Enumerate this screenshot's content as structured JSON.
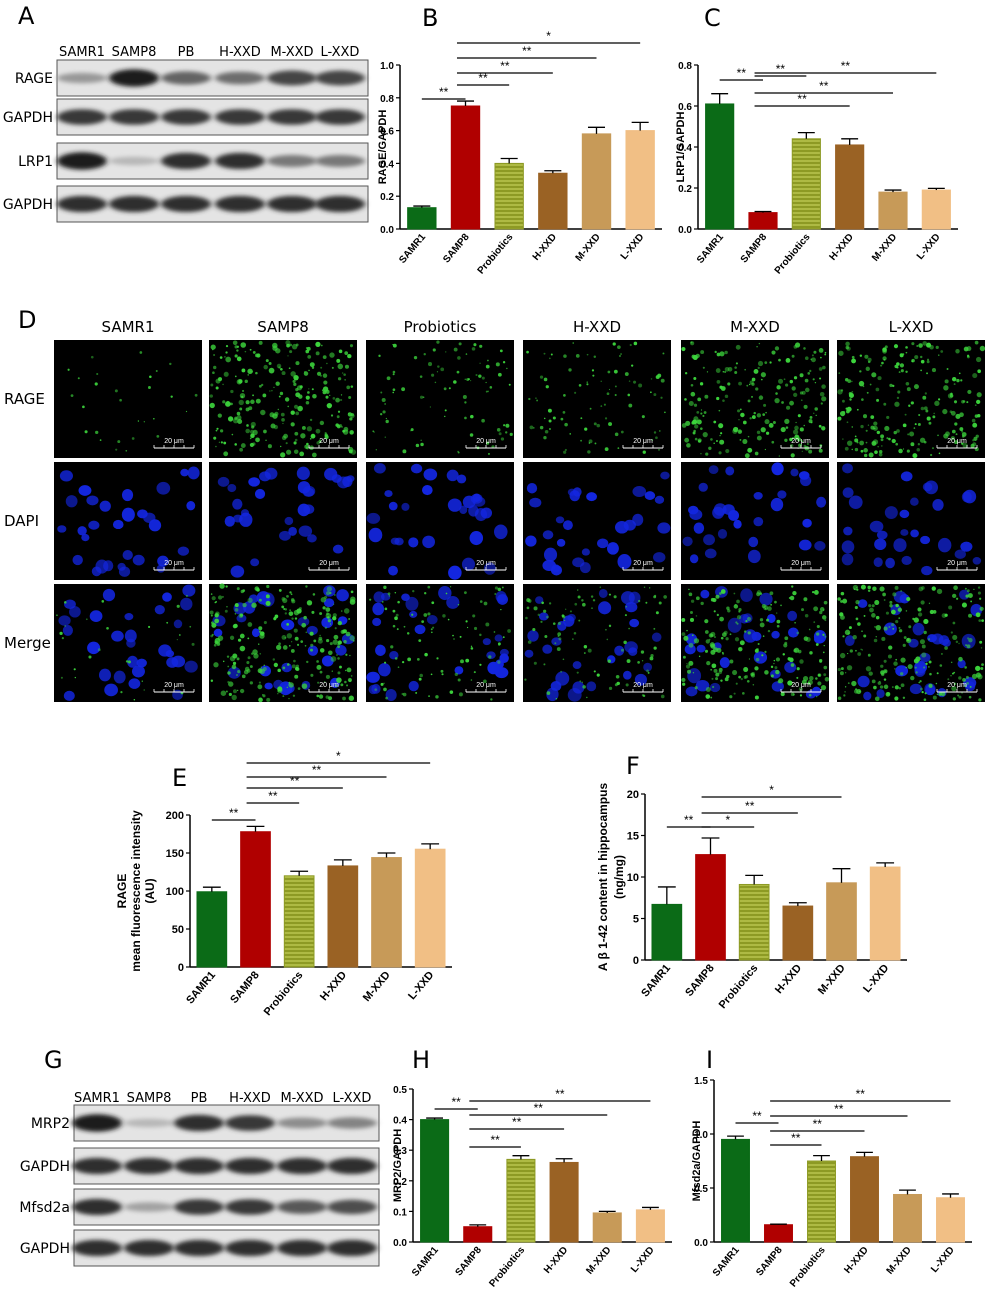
{
  "panels": {
    "A": "A",
    "B": "B",
    "C": "C",
    "D": "D",
    "E": "E",
    "F": "F",
    "G": "G",
    "H": "H",
    "I": "I"
  },
  "blotA": {
    "lanes": [
      "SAMR1",
      "SAMP8",
      "PB",
      "H-XXD",
      "M-XXD",
      "L-XXD"
    ],
    "rows": [
      {
        "label": "RAGE",
        "intensity": [
          0.35,
          0.95,
          0.6,
          0.55,
          0.75,
          0.75
        ]
      },
      {
        "label": "GAPDH",
        "intensity": [
          0.8,
          0.8,
          0.8,
          0.8,
          0.8,
          0.8
        ]
      },
      {
        "label": "LRP1",
        "intensity": [
          0.95,
          0.2,
          0.85,
          0.85,
          0.5,
          0.5
        ]
      },
      {
        "label": "GAPDH",
        "intensity": [
          0.85,
          0.85,
          0.85,
          0.85,
          0.85,
          0.85
        ]
      }
    ]
  },
  "blotG": {
    "lanes": [
      "SAMR1",
      "SAMP8",
      "PB",
      "H-XXD",
      "M-XXD",
      "L-XXD"
    ],
    "rows": [
      {
        "label": "MRP2",
        "intensity": [
          0.95,
          0.2,
          0.85,
          0.8,
          0.4,
          0.45
        ]
      },
      {
        "label": "GAPDH",
        "intensity": [
          0.85,
          0.85,
          0.85,
          0.85,
          0.85,
          0.85
        ]
      },
      {
        "label": "Mfsd2a",
        "intensity": [
          0.85,
          0.3,
          0.8,
          0.8,
          0.65,
          0.7
        ]
      },
      {
        "label": "GAPDH",
        "intensity": [
          0.85,
          0.85,
          0.85,
          0.85,
          0.85,
          0.85
        ]
      }
    ]
  },
  "if_panel": {
    "columns": [
      "SAMR1",
      "SAMP8",
      "Probiotics",
      "H-XXD",
      "M-XXD",
      "L-XXD"
    ],
    "rows": [
      "RAGE",
      "DAPI",
      "Merge"
    ],
    "scale_label": "20 μm",
    "green_density": [
      0.05,
      0.9,
      0.3,
      0.3,
      0.75,
      0.8
    ]
  },
  "chart_data": [
    {
      "id": "B",
      "type": "bar",
      "categories": [
        "SAMR1",
        "SAMP8",
        "Probiotics",
        "H-XXD",
        "M-XXD",
        "L-XXD"
      ],
      "values": [
        0.13,
        0.75,
        0.4,
        0.34,
        0.58,
        0.6
      ],
      "errors": [
        0.01,
        0.03,
        0.03,
        0.015,
        0.04,
        0.05
      ],
      "ylabel": "RAGE/GAPDH",
      "ylim": [
        0,
        1.0
      ],
      "yticks": [
        "0.0",
        "0.2",
        "0.4",
        "0.6",
        "0.8",
        "1.0"
      ],
      "sig": [
        {
          "from": 0,
          "to": 1,
          "text": "**"
        },
        {
          "from": 1,
          "to": 2,
          "text": "**"
        },
        {
          "from": 1,
          "to": 3,
          "text": "**"
        },
        {
          "from": 1,
          "to": 4,
          "text": "**"
        },
        {
          "from": 1,
          "to": 5,
          "text": "*"
        }
      ]
    },
    {
      "id": "C",
      "type": "bar",
      "categories": [
        "SAMR1",
        "SAMP8",
        "Probiotics",
        "H-XXD",
        "M-XXD",
        "L-XXD"
      ],
      "values": [
        0.61,
        0.08,
        0.44,
        0.41,
        0.18,
        0.19
      ],
      "errors": [
        0.05,
        0.005,
        0.03,
        0.03,
        0.01,
        0.008
      ],
      "ylabel": "LRP1/GAPDH",
      "ylim": [
        0,
        0.8
      ],
      "yticks": [
        "0.0",
        "0.2",
        "0.4",
        "0.6",
        "0.8"
      ],
      "sig": [
        {
          "from": 0,
          "to": 1,
          "text": "**"
        },
        {
          "from": 1,
          "to": 2,
          "text": "**"
        },
        {
          "from": 1,
          "to": 3,
          "text": "**"
        },
        {
          "from": 1,
          "to": 4,
          "text": "**"
        },
        {
          "from": 1,
          "to": 5,
          "text": "**"
        }
      ]
    },
    {
      "id": "E",
      "type": "bar",
      "categories": [
        "SAMR1",
        "SAMP8",
        "Probiotics",
        "H-XXD",
        "M-XXD",
        "L-XXD"
      ],
      "values": [
        99,
        178,
        120,
        133,
        144,
        155
      ],
      "errors": [
        6,
        7,
        6,
        8,
        6,
        7
      ],
      "ylabel": "RAGE",
      "ylabel2": "mean fluorescence intensity",
      "ylabel3": "(AU)",
      "ylim": [
        0,
        200
      ],
      "yticks": [
        "0",
        "50",
        "100",
        "150",
        "200"
      ],
      "sig": [
        {
          "from": 0,
          "to": 1,
          "text": "**"
        },
        {
          "from": 1,
          "to": 2,
          "text": "**"
        },
        {
          "from": 1,
          "to": 3,
          "text": "**"
        },
        {
          "from": 1,
          "to": 4,
          "text": "**"
        },
        {
          "from": 1,
          "to": 5,
          "text": "*"
        }
      ]
    },
    {
      "id": "F",
      "type": "bar",
      "categories": [
        "SAMR1",
        "SAMP8",
        "Probiotics",
        "H-XXD",
        "M-XXD",
        "L-XXD"
      ],
      "values": [
        6.7,
        12.7,
        9.1,
        6.5,
        9.3,
        11.2
      ],
      "errors": [
        2.1,
        2.0,
        1.1,
        0.4,
        1.7,
        0.5
      ],
      "ylabel": "A β 1-42 content in hippocampus",
      "ylabel2": "(ng/mg)",
      "ylim": [
        0,
        20
      ],
      "yticks": [
        "0",
        "5",
        "10",
        "15",
        "20"
      ],
      "sig": [
        {
          "from": 0,
          "to": 1,
          "text": "**"
        },
        {
          "from": 1,
          "to": 2,
          "text": "*"
        },
        {
          "from": 1,
          "to": 3,
          "text": "**"
        },
        {
          "from": 1,
          "to": 4,
          "text": "*"
        }
      ]
    },
    {
      "id": "H",
      "type": "bar",
      "categories": [
        "SAMR1",
        "SAMP8",
        "Probiotics",
        "H-XXD",
        "M-XXD",
        "L-XXD"
      ],
      "values": [
        0.4,
        0.05,
        0.27,
        0.26,
        0.095,
        0.105
      ],
      "errors": [
        0.005,
        0.006,
        0.012,
        0.012,
        0.005,
        0.008
      ],
      "ylabel": "MRP2/GAPDH",
      "ylim": [
        0,
        0.5
      ],
      "yticks": [
        "0.0",
        "0.1",
        "0.2",
        "0.3",
        "0.4",
        "0.5"
      ],
      "sig": [
        {
          "from": 0,
          "to": 1,
          "text": "**"
        },
        {
          "from": 1,
          "to": 2,
          "text": "**"
        },
        {
          "from": 1,
          "to": 3,
          "text": "**"
        },
        {
          "from": 1,
          "to": 4,
          "text": "**"
        },
        {
          "from": 1,
          "to": 5,
          "text": "**"
        }
      ]
    },
    {
      "id": "I",
      "type": "bar",
      "categories": [
        "SAMR1",
        "SAMP8",
        "Probiotics",
        "H-XXD",
        "M-XXD",
        "L-XXD"
      ],
      "values": [
        0.95,
        0.16,
        0.75,
        0.79,
        0.44,
        0.41
      ],
      "errors": [
        0.03,
        0.005,
        0.05,
        0.04,
        0.04,
        0.035
      ],
      "ylabel": "Mfsd2a/GAPDH",
      "ylim": [
        0,
        1.5
      ],
      "yticks": [
        "0.0",
        "0.5",
        "1.0",
        "1.5"
      ],
      "sig": [
        {
          "from": 0,
          "to": 1,
          "text": "**"
        },
        {
          "from": 1,
          "to": 2,
          "text": "**"
        },
        {
          "from": 1,
          "to": 3,
          "text": "**"
        },
        {
          "from": 1,
          "to": 4,
          "text": "**"
        },
        {
          "from": 1,
          "to": 5,
          "text": "**"
        }
      ]
    }
  ],
  "colors": {
    "bars": [
      "#0b6b17",
      "#b00000",
      "#8d9a24",
      "#9a6224",
      "#c79a58",
      "#f1bf85"
    ],
    "hatched": [
      false,
      false,
      true,
      false,
      false,
      false
    ],
    "green_if": "#3cd43c",
    "blue_if": "#1326e0"
  }
}
